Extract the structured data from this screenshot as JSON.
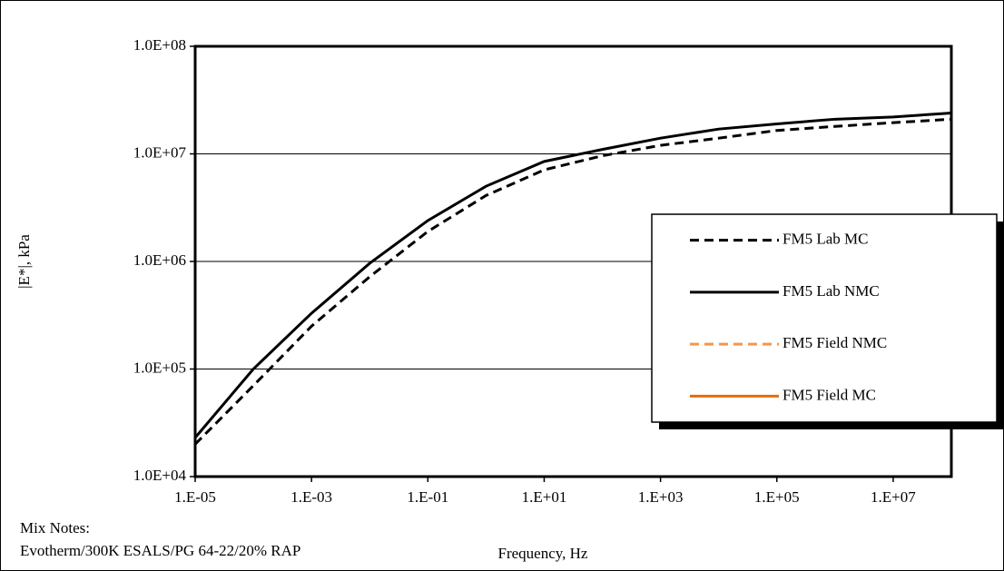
{
  "chart_data": {
    "type": "line",
    "x_label": "Frequency, Hz",
    "y_label": "|E*|, kPa",
    "annotations": [
      "Mix Notes:",
      "Evotherm/300K ESALS/PG 64-22/20% RAP"
    ],
    "x_log": true,
    "y_log": true,
    "grid": true,
    "legend_position": "right",
    "xlim": [
      1e-05,
      100000000
    ],
    "ylim": [
      10000,
      100000000
    ],
    "xticks": [
      {
        "value": 1e-05,
        "label": "1.E-05"
      },
      {
        "value": 0.001,
        "label": "1.E-03"
      },
      {
        "value": 0.1,
        "label": "1.E-01"
      },
      {
        "value": 10,
        "label": "1.E+01"
      },
      {
        "value": 1000,
        "label": "1.E+03"
      },
      {
        "value": 100000,
        "label": "1.E+05"
      },
      {
        "value": 10000000,
        "label": "1.E+07"
      }
    ],
    "yticks": [
      {
        "value": 10000,
        "label": "1.0E+04"
      },
      {
        "value": 100000,
        "label": "1.0E+05"
      },
      {
        "value": 1000000,
        "label": "1.0E+06"
      },
      {
        "value": 10000000,
        "label": "1.0E+07"
      },
      {
        "value": 100000000,
        "label": "1.0E+08"
      }
    ],
    "x": [
      1e-05,
      0.0001,
      0.001,
      0.01,
      0.1,
      1,
      10,
      100,
      1000,
      10000,
      100000,
      1000000,
      10000000,
      100000000
    ],
    "series": [
      {
        "name": "FM5 Lab MC",
        "color": "#000000",
        "dash": true,
        "values": [
          20000,
          70000,
          250000,
          720000,
          1900000,
          4100000,
          7100000,
          9600000,
          12000000,
          14000000,
          16500000,
          18000000,
          19500000,
          21000000
        ]
      },
      {
        "name": "FM5 Lab NMC",
        "color": "#000000",
        "dash": false,
        "values": [
          23000,
          100000,
          330000,
          960000,
          2400000,
          5000000,
          8500000,
          11000000,
          14000000,
          17000000,
          19000000,
          21000000,
          22000000,
          24000000
        ]
      },
      {
        "name": "FM5 Field NMC",
        "color": "#f79646",
        "dash": true,
        "values": [
          null,
          null,
          null,
          null,
          null,
          null,
          null,
          null,
          null,
          null,
          null,
          null,
          null,
          null
        ]
      },
      {
        "name": "FM5 Field MC",
        "color": "#e46c0a",
        "dash": false,
        "values": [
          null,
          null,
          null,
          null,
          null,
          null,
          null,
          null,
          null,
          null,
          null,
          null,
          null,
          null
        ]
      }
    ]
  }
}
